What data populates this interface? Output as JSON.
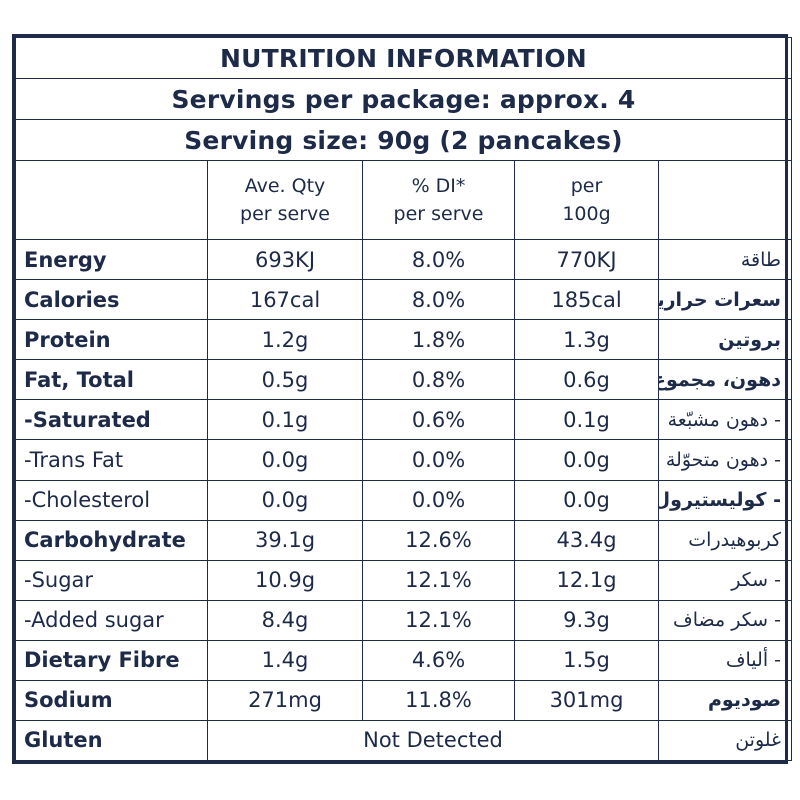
{
  "panel": {
    "title": "NUTRITION INFORMATION",
    "servings_per_package": "Servings per package: approx. 4",
    "serving_size": "Serving size: 90g (2 pancakes)"
  },
  "columns": {
    "ave_qty_line1": "Ave. Qty",
    "ave_qty_line2": "per serve",
    "di_line1": "% DI*",
    "di_line2": "per serve",
    "per100_line1": "per",
    "per100_line2": "100g"
  },
  "rows": [
    {
      "name": "Energy",
      "ave": "693KJ",
      "di": "8.0%",
      "per100": "770KJ",
      "arabic": "طاقة"
    },
    {
      "name": "Calories",
      "ave": "167cal",
      "di": "8.0%",
      "per100": "185cal",
      "arabic": "سعرات حرارية"
    },
    {
      "name": "Protein",
      "ave": "1.2g",
      "di": "1.8%",
      "per100": "1.3g",
      "arabic": "بروتين"
    },
    {
      "name": "Fat, Total",
      "ave": "0.5g",
      "di": "0.8%",
      "per100": "0.6g",
      "arabic": "دهون، مجموع"
    },
    {
      "name": "-Saturated",
      "ave": "0.1g",
      "di": "0.6%",
      "per100": "0.1g",
      "arabic": "- دهون مشبّعة"
    },
    {
      "name": "-Trans Fat",
      "ave": "0.0g",
      "di": "0.0%",
      "per100": "0.0g",
      "arabic": "- دهون متحوّلة"
    },
    {
      "name": "-Cholesterol",
      "ave": "0.0g",
      "di": "0.0%",
      "per100": "0.0g",
      "arabic": "- كوليستيرول"
    },
    {
      "name": "Carbohydrate",
      "ave": "39.1g",
      "di": "12.6%",
      "per100": "43.4g",
      "arabic": "كربوهيدرات"
    },
    {
      "name": "-Sugar",
      "ave": "10.9g",
      "di": "12.1%",
      "per100": "12.1g",
      "arabic": "- سكر"
    },
    {
      "name": "-Added sugar",
      "ave": "8.4g",
      "di": "12.1%",
      "per100": "9.3g",
      "arabic": "- سكر مضاف"
    },
    {
      "name": "Dietary Fibre",
      "ave": "1.4g",
      "di": "4.6%",
      "per100": "1.5g",
      "arabic": "- ألياف"
    },
    {
      "name": "Sodium",
      "ave": "271mg",
      "di": "11.8%",
      "per100": "301mg",
      "arabic": "صوديوم"
    }
  ],
  "gluten": {
    "name": "Gluten",
    "value": "Not Detected",
    "arabic": "غلوتن"
  },
  "colors": {
    "ink": "#1d2a48",
    "background": "#ffffff"
  }
}
